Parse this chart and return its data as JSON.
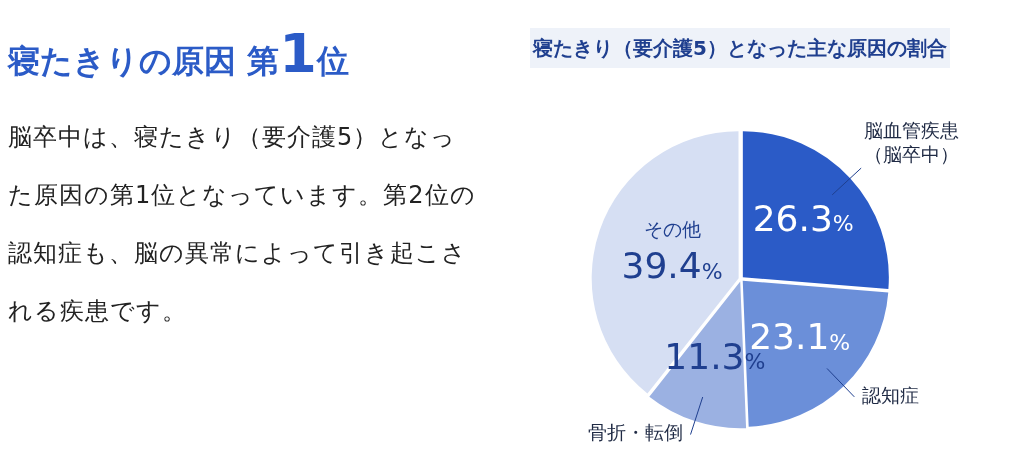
{
  "chart_data": {
    "type": "pie",
    "title": "寝たきり（要介護5）となった主な原因の割合",
    "categories": [
      "脳血管疾患（脳卒中）",
      "認知症",
      "骨折・転倒",
      "その他"
    ],
    "values": [
      26.3,
      23.1,
      11.3,
      39.4
    ],
    "colors": [
      "#2b5bc7",
      "#6b8fd9",
      "#9bb1e2",
      "#d6dff3"
    ],
    "value_labels": [
      "26.3%",
      "23.1%",
      "11.3%",
      "39.4%"
    ],
    "legend": false,
    "annotations": [
      "寝たきりの原因 第1位",
      "脳卒中は、寝たきり（要介護5）となった原因の第1位となっています。第2位の認知症も、脳の異常によって引き起こされる疾患です。"
    ]
  }
}
